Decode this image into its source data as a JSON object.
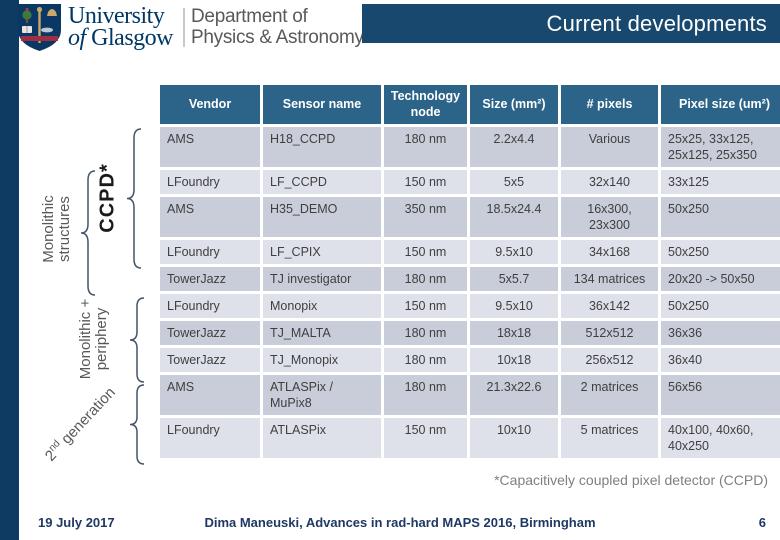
{
  "branding": {
    "university_line1": "University",
    "university_line2_italic": "of",
    "university_line2_rest": "Glasgow",
    "department_line1": "Department of",
    "department_line2": "Physics & Astronomy"
  },
  "title": "Current developments",
  "table": {
    "headers": [
      "Vendor",
      "Sensor name",
      "Technology node",
      "Size (mm²)",
      "# pixels",
      "Pixel size (um²)"
    ],
    "rows": [
      [
        "AMS",
        "H18_CCPD",
        "180 nm",
        "2.2x4.4",
        "Various",
        "25x25, 33x125, 25x125, 25x350"
      ],
      [
        "LFoundry",
        "LF_CCPD",
        "150 nm",
        "5x5",
        "32x140",
        "33x125"
      ],
      [
        "AMS",
        "H35_DEMO",
        "350 nm",
        "18.5x24.4",
        "16x300, 23x300",
        "50x250"
      ],
      [
        "LFoundry",
        "LF_CPIX",
        "150 nm",
        "9.5x10",
        "34x168",
        "50x250"
      ],
      [
        "TowerJazz",
        "TJ investigator",
        "180 nm",
        "5x5.7",
        "134 matrices",
        "20x20 -> 50x50"
      ],
      [
        "LFoundry",
        "Monopix",
        "150 nm",
        "9.5x10",
        "36x142",
        "50x250"
      ],
      [
        "TowerJazz",
        "TJ_MALTA",
        "180 nm",
        "18x18",
        "512x512",
        "36x36"
      ],
      [
        "TowerJazz",
        "TJ_Monopix",
        "180 nm",
        "10x18",
        "256x512",
        "36x40"
      ],
      [
        "AMS",
        "ATLASPix / MuPix8",
        "180 nm",
        "21.3x22.6",
        "2 matrices",
        "56x56"
      ],
      [
        "LFoundry",
        "ATLASPix",
        "150 nm",
        "10x10",
        "5 matrices",
        "40x100, 40x60, 40x250"
      ]
    ]
  },
  "annotations": {
    "monolithic_line1": "Monolithic",
    "monolithic_line2": "structures",
    "ccpd": "CCPD*",
    "periphery_line1": "Monolithic +",
    "periphery_line2": "periphery",
    "generation_prefix": "2",
    "generation_sup": "nd",
    "generation_suffix": " generation"
  },
  "footnote": "*Capacitively coupled pixel detector (CCPD)",
  "footer": {
    "date": "19 July 2017",
    "credit": "Dima Maneuski, Advances in rad-hard MAPS 2016, Birmingham",
    "page": "6"
  },
  "colors": {
    "navy": "#0d3b62",
    "banner": "#19486e",
    "brand_navy": "#003865",
    "header_blue": "#2c6388",
    "band_dark": "#c8cdd9",
    "band_light": "#dee1e9",
    "brace": "#44546a",
    "footnote_gray": "#7f7f7f",
    "footer_navy": "#1f3864"
  }
}
